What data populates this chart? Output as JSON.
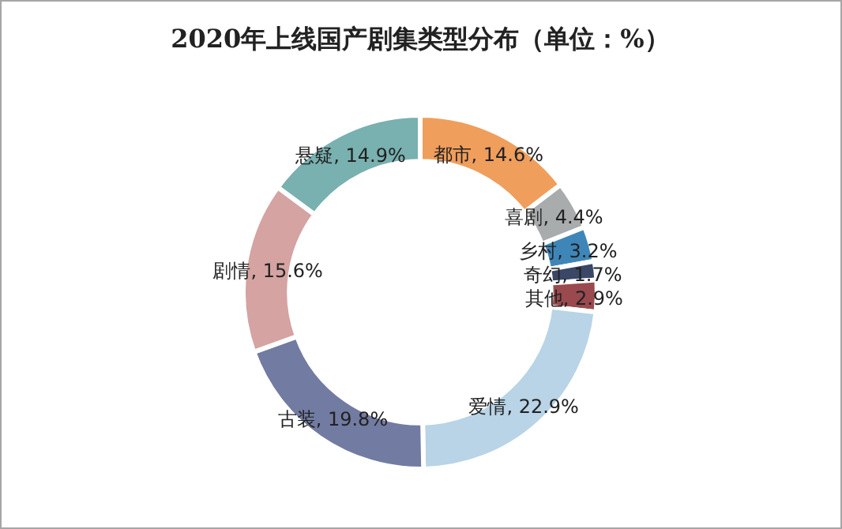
{
  "chart_data": {
    "type": "donut",
    "title": "2020年上线国产剧集类型分布（单位：%）",
    "categories": [
      "都市",
      "喜剧",
      "乡村",
      "奇幻",
      "其他",
      "爱情",
      "古装",
      "剧情",
      "悬疑"
    ],
    "values": [
      14.6,
      4.4,
      3.2,
      1.7,
      2.9,
      22.9,
      19.8,
      15.6,
      14.9
    ],
    "value_labels": [
      "14.6%",
      "4.4%",
      "3.2%",
      "1.7%",
      "2.9%",
      "22.9%",
      "19.8%",
      "15.6%",
      "14.9%"
    ],
    "colors": [
      "#f09e5c",
      "#a9acad",
      "#3f86b8",
      "#3a4766",
      "#9a4a4e",
      "#b8d4e6",
      "#727ba1",
      "#d4a3a2",
      "#79b0b0"
    ]
  }
}
